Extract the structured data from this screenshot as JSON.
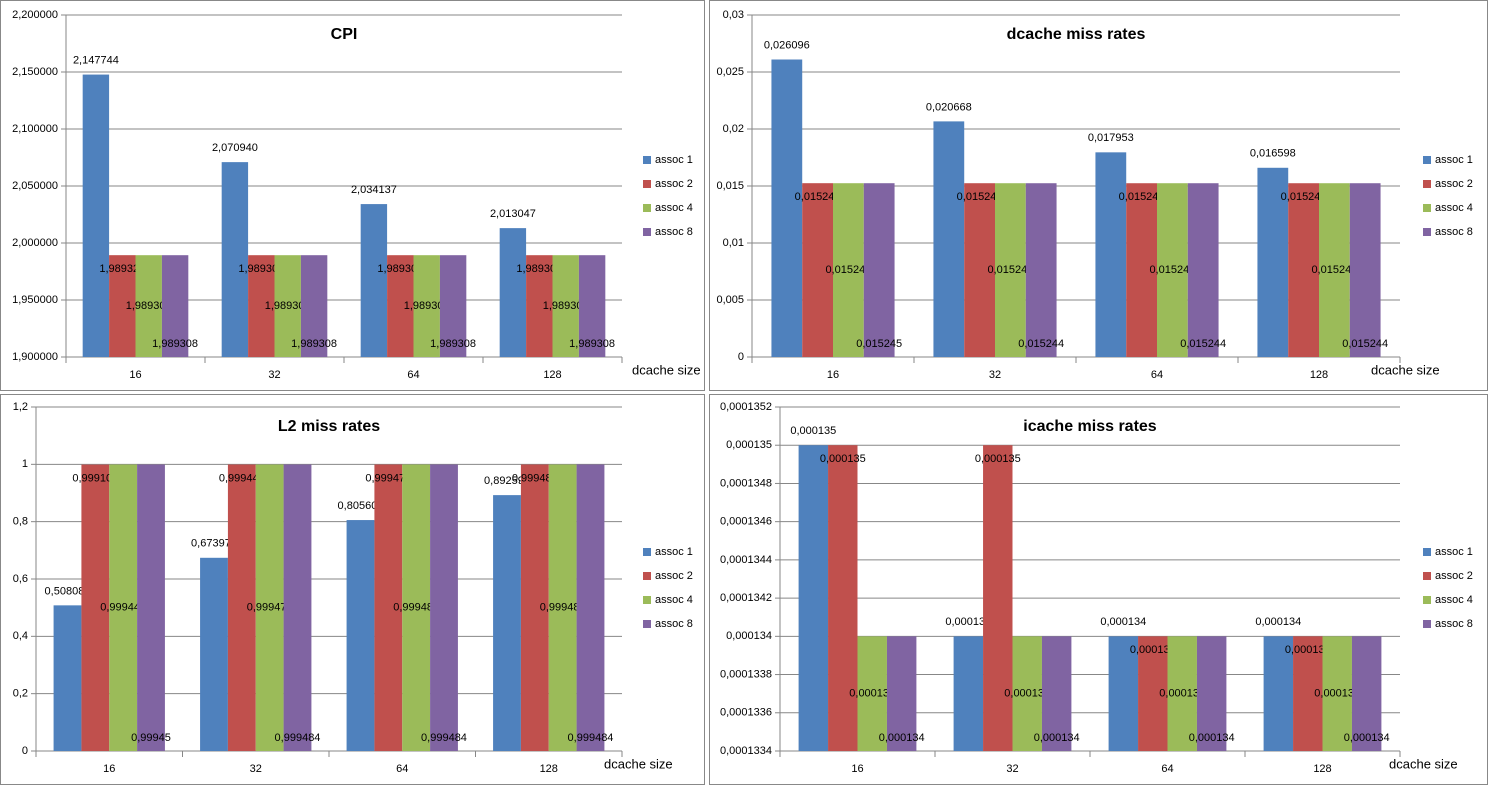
{
  "chart_data": [
    {
      "type": "bar",
      "title": "CPI",
      "x_label": "dcache size",
      "categories": [
        "16",
        "32",
        "64",
        "128"
      ],
      "ylim": [
        1.9,
        2.2
      ],
      "yticks": [
        {
          "value": 1.9,
          "label": "1,900000"
        },
        {
          "value": 1.95,
          "label": "1,950000"
        },
        {
          "value": 2.0,
          "label": "2,000000"
        },
        {
          "value": 2.05,
          "label": "2,050000"
        },
        {
          "value": 2.1,
          "label": "2,100000"
        },
        {
          "value": 2.15,
          "label": "2,150000"
        },
        {
          "value": 2.2,
          "label": "2,200000"
        }
      ],
      "grid": true,
      "legend": "right",
      "series": [
        {
          "name": "assoc 1",
          "color": "#4f81bd",
          "values": [
            2.147744,
            2.07094,
            2.034137,
            2.013047
          ],
          "value_labels": [
            "2,147744",
            "2,070940",
            "2,034137",
            "2,013047"
          ]
        },
        {
          "name": "assoc 2",
          "color": "#c0504d",
          "values": [
            1.989325,
            1.989308,
            1.989308,
            1.989308
          ],
          "value_labels": [
            "1,989325",
            "1,989308",
            "1,989308",
            "1,989308"
          ]
        },
        {
          "name": "assoc 4",
          "color": "#9bbb59",
          "values": [
            1.989308,
            1.989308,
            1.989308,
            1.989308
          ],
          "value_labels": [
            "1,989308",
            "1,989308",
            "1,989308",
            "1,989308"
          ]
        },
        {
          "name": "assoc 8",
          "color": "#8064a2",
          "values": [
            1.989308,
            1.989308,
            1.989308,
            1.989308
          ],
          "value_labels": [
            "1,989308",
            "1,989308",
            "1,989308",
            "1,989308"
          ]
        }
      ]
    },
    {
      "type": "bar",
      "title": "dcache miss rates",
      "x_label": "dcache size",
      "categories": [
        "16",
        "32",
        "64",
        "128"
      ],
      "ylim": [
        0,
        0.03
      ],
      "yticks": [
        0,
        {
          "value": 0.005,
          "label": "0,005"
        },
        {
          "value": 0.01,
          "label": "0,01"
        },
        {
          "value": 0.015,
          "label": "0,015"
        },
        {
          "value": 0.02,
          "label": "0,02"
        },
        {
          "value": 0.025,
          "label": "0,025"
        },
        {
          "value": 0.03,
          "label": "0,03"
        }
      ],
      "grid": true,
      "legend": "right",
      "series": [
        {
          "name": "assoc 1",
          "color": "#4f81bd",
          "values": [
            0.026096,
            0.020668,
            0.017953,
            0.016598
          ],
          "value_labels": [
            "0,026096",
            "0,020668",
            "0,017953",
            "0,016598"
          ]
        },
        {
          "name": "assoc 2",
          "color": "#c0504d",
          "values": [
            0.015247,
            0.015245,
            0.015244,
            0.015244
          ],
          "value_labels": [
            "0,015247",
            "0,015245",
            "0,015244",
            "0,015244"
          ]
        },
        {
          "name": "assoc 4",
          "color": "#9bbb59",
          "values": [
            0.015245,
            0.015244,
            0.015244,
            0.015244
          ],
          "value_labels": [
            "0,015245",
            "0,015244",
            "0,015244",
            "0,015244"
          ]
        },
        {
          "name": "assoc 8",
          "color": "#8064a2",
          "values": [
            0.015245,
            0.015244,
            0.015244,
            0.015244
          ],
          "value_labels": [
            "0,015245",
            "0,015244",
            "0,015244",
            "0,015244"
          ]
        }
      ]
    },
    {
      "type": "bar",
      "title": "L2 miss rates",
      "x_label": "dcache size",
      "categories": [
        "16",
        "32",
        "64",
        "128"
      ],
      "ylim": [
        0,
        1.2
      ],
      "yticks": [
        0,
        {
          "value": 0.2,
          "label": "0,2"
        },
        {
          "value": 0.4,
          "label": "0,4"
        },
        {
          "value": 0.6,
          "label": "0,6"
        },
        {
          "value": 0.8,
          "label": "0,8"
        },
        1,
        {
          "value": 1.2,
          "label": "1,2"
        }
      ],
      "grid": true,
      "legend": "right",
      "series": [
        {
          "name": "assoc 1",
          "color": "#4f81bd",
          "values": [
            0.508081,
            0.673971,
            0.805607,
            0.892595
          ],
          "value_labels": [
            "0,508081",
            "0,673971",
            "0,805607",
            "0,892595"
          ]
        },
        {
          "name": "assoc 2",
          "color": "#c0504d",
          "values": [
            0.999106,
            0.999442,
            0.999474,
            0.999482
          ],
          "value_labels": [
            "0,999106",
            "0,999442",
            "0,999474",
            "0,999482"
          ]
        },
        {
          "name": "assoc 4",
          "color": "#9bbb59",
          "values": [
            0.999444,
            0.999474,
            0.999484,
            0.999484
          ],
          "value_labels": [
            "0,999444",
            "0,999474",
            "0,999484",
            "0,999484"
          ]
        },
        {
          "name": "assoc 8",
          "color": "#8064a2",
          "values": [
            0.99945,
            0.999484,
            0.999484,
            0.999484
          ],
          "value_labels": [
            "0,99945",
            "0,999484",
            "0,999484",
            "0,999484"
          ]
        }
      ]
    },
    {
      "type": "bar",
      "title": "icache miss rates",
      "x_label": "dcache size",
      "categories": [
        "16",
        "32",
        "64",
        "128"
      ],
      "ylim": [
        0.0001334,
        0.0001352
      ],
      "yticks": [
        {
          "value": 0.0001334,
          "label": "0,0001334"
        },
        {
          "value": 0.0001336,
          "label": "0,0001336"
        },
        {
          "value": 0.0001338,
          "label": "0,0001338"
        },
        {
          "value": 0.000134,
          "label": "0,000134"
        },
        {
          "value": 0.0001342,
          "label": "0,0001342"
        },
        {
          "value": 0.0001344,
          "label": "0,0001344"
        },
        {
          "value": 0.0001346,
          "label": "0,0001346"
        },
        {
          "value": 0.0001348,
          "label": "0,0001348"
        },
        {
          "value": 0.000135,
          "label": "0,000135"
        },
        {
          "value": 0.0001352,
          "label": "0,0001352"
        }
      ],
      "grid": true,
      "legend": "right",
      "series": [
        {
          "name": "assoc 1",
          "color": "#4f81bd",
          "values": [
            0.000135,
            0.000134,
            0.000134,
            0.000134
          ],
          "value_labels": [
            "0,000135",
            "0,000134",
            "0,000134",
            "0,000134"
          ]
        },
        {
          "name": "assoc 2",
          "color": "#c0504d",
          "values": [
            0.000135,
            0.000135,
            0.000134,
            0.000134
          ],
          "value_labels": [
            "0,000135",
            "0,000135",
            "0,000134",
            "0,000134"
          ]
        },
        {
          "name": "assoc 4",
          "color": "#9bbb59",
          "values": [
            0.000134,
            0.000134,
            0.000134,
            0.000134
          ],
          "value_labels": [
            "0,000134",
            "0,000134",
            "0,000134",
            "0,000134"
          ]
        },
        {
          "name": "assoc 8",
          "color": "#8064a2",
          "values": [
            0.000134,
            0.000134,
            0.000134,
            0.000134
          ],
          "value_labels": [
            "0,000134",
            "0,000134",
            "0,000134",
            "0,000134"
          ]
        }
      ]
    }
  ]
}
